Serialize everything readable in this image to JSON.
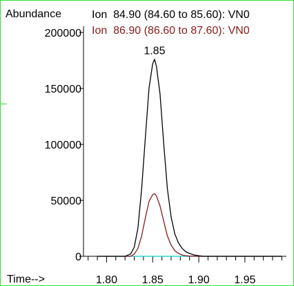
{
  "chart_data": {
    "type": "line",
    "ylabel": "Abundance",
    "xlabel": "Time-->",
    "xlim": [
      1.775,
      1.995
    ],
    "ylim": [
      0,
      200000
    ],
    "y_ticks": [
      0,
      50000,
      100000,
      150000,
      200000
    ],
    "y_tick_labels": [
      "0",
      "50000",
      "100000",
      "150000",
      "200000"
    ],
    "x_ticks": [
      1.8,
      1.85,
      1.9,
      1.95
    ],
    "x_tick_labels": [
      "1.80",
      "1.85",
      "1.90",
      "1.95"
    ],
    "peak_label": "1.85",
    "peak_label_x": 1.852,
    "peak_label_y": 175000,
    "series": [
      {
        "name": "Ion  84.90 (84.60 to 85.60): VN0",
        "color": "#000000",
        "x": [
          1.79,
          1.82,
          1.826,
          1.83,
          1.834,
          1.838,
          1.842,
          1.846,
          1.85,
          1.852,
          1.854,
          1.858,
          1.862,
          1.866,
          1.87,
          1.874,
          1.878,
          1.882,
          1.886,
          1.89,
          1.895,
          1.9,
          1.905,
          1.99
        ],
        "values": [
          0,
          0,
          2000,
          8000,
          25000,
          60000,
          105000,
          150000,
          172000,
          176000,
          170000,
          145000,
          100000,
          60000,
          35000,
          20000,
          12000,
          7000,
          4000,
          2500,
          1200,
          500,
          0,
          0
        ]
      },
      {
        "name": "Ion  86.90 (86.60 to 87.60): VN0",
        "color": "#8b1a1a",
        "x": [
          1.79,
          1.826,
          1.83,
          1.834,
          1.838,
          1.842,
          1.846,
          1.85,
          1.852,
          1.854,
          1.858,
          1.862,
          1.866,
          1.87,
          1.874,
          1.878,
          1.882,
          1.886,
          1.89,
          1.9,
          1.99
        ],
        "values": [
          0,
          0,
          2000,
          7000,
          18000,
          34000,
          49000,
          55000,
          56000,
          54000,
          45000,
          31000,
          18000,
          10000,
          5000,
          2500,
          1200,
          500,
          200,
          0,
          0
        ]
      },
      {
        "color": "#00cccc",
        "x": [
          1.8,
          1.99
        ],
        "values": [
          0,
          0
        ]
      }
    ]
  }
}
